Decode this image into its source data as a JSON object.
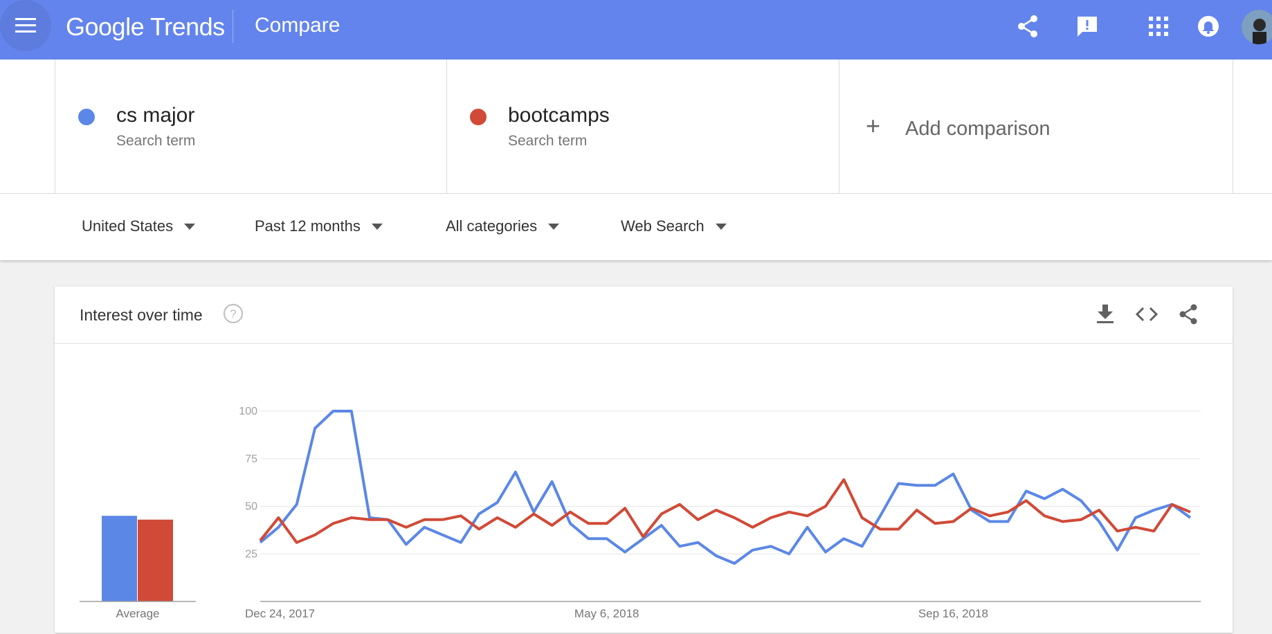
{
  "header": {
    "logo_google": "Google",
    "logo_trends": "Trends",
    "title": "Compare",
    "icons": [
      "menu-icon",
      "share-icon",
      "feedback-icon",
      "apps-icon",
      "notifications-icon"
    ]
  },
  "terms": [
    {
      "name": "cs major",
      "subtitle": "Search term",
      "color": "#5b87e6"
    },
    {
      "name": "bootcamps",
      "subtitle": "Search term",
      "color": "#d04a37"
    }
  ],
  "add_comparison": {
    "plus": "+",
    "label": "Add comparison"
  },
  "filters": {
    "region": "United States",
    "time": "Past 12 months",
    "category": "All categories",
    "search_type": "Web Search"
  },
  "card": {
    "title": "Interest over time",
    "help": "?"
  },
  "chart_data": {
    "type": "line",
    "x_labels": [
      "Dec 24, 2017",
      "May 6, 2018",
      "Sep 16, 2018"
    ],
    "y_ticks": [
      25,
      50,
      75,
      100
    ],
    "ylim": [
      0,
      100
    ],
    "average_label": "Average",
    "averages": [
      45,
      43
    ],
    "series": [
      {
        "name": "cs major",
        "color": "#5b87e6",
        "values": [
          31,
          39,
          51,
          91,
          100,
          100,
          44,
          43,
          30,
          39,
          35,
          31,
          46,
          52,
          68,
          47,
          63,
          41,
          33,
          33,
          26,
          33,
          40,
          29,
          31,
          24,
          20,
          27,
          29,
          25,
          39,
          26,
          33,
          29,
          45,
          62,
          61,
          61,
          67,
          48,
          42,
          42,
          58,
          54,
          59,
          53,
          42,
          27,
          44,
          48,
          51,
          44
        ]
      },
      {
        "name": "bootcamps",
        "color": "#d04a37",
        "values": [
          32,
          44,
          31,
          35,
          41,
          44,
          43,
          43,
          39,
          43,
          43,
          45,
          38,
          44,
          39,
          46,
          40,
          47,
          41,
          41,
          49,
          34,
          46,
          51,
          43,
          48,
          44,
          39,
          44,
          47,
          45,
          50,
          64,
          44,
          38,
          38,
          48,
          41,
          42,
          49,
          45,
          47,
          53,
          45,
          42,
          43,
          48,
          37,
          39,
          37,
          51,
          47
        ]
      }
    ]
  }
}
